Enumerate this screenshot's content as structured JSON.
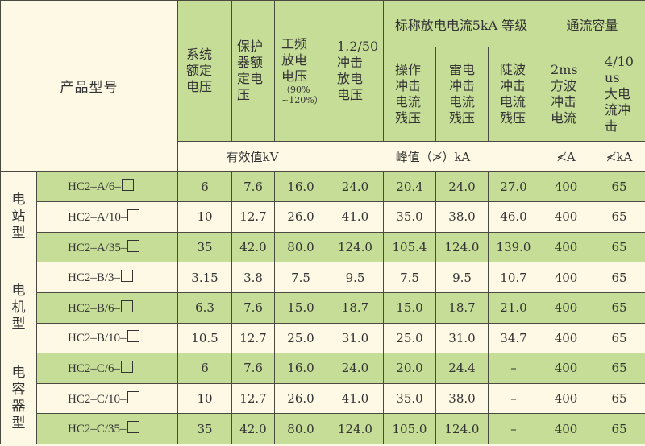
{
  "header": {
    "product_model": "产品型号",
    "rated_system_voltage": "系统额定电压",
    "rated_protector_voltage": "保护器额定电压",
    "power_freq_discharge": "工频放电电压",
    "power_freq_range": "（90% ~120%）",
    "impulse_discharge": [
      "1.2/50",
      "冲击放电电压"
    ],
    "nominal_group": "标称放电电流5kA 等级",
    "switching_residual": "操作冲击电流残压",
    "lightning_residual": "雷电冲击电流残压",
    "steep_residual": "陡波冲击电流残压",
    "flow_capacity": "通流容量",
    "square_wave": [
      "2ms",
      "方波冲击电流"
    ],
    "high_current": [
      "4/10",
      "us大电流冲击"
    ]
  },
  "units": {
    "rms": "有效值kV",
    "peak": "峰值（≯）kA",
    "square_wave": "≮A",
    "high_current": "≮kA"
  },
  "groups": [
    {
      "name": "电站型",
      "rows": [
        {
          "model": "HC2–A/6–",
          "values": [
            "6",
            "7.6",
            "16.0",
            "24.0",
            "20.4",
            "24.0",
            "27.0",
            "400",
            "65"
          ]
        },
        {
          "model": "HC2–A/10–",
          "values": [
            "10",
            "12.7",
            "26.0",
            "41.0",
            "35.0",
            "38.0",
            "46.0",
            "400",
            "65"
          ]
        },
        {
          "model": "HC2–A/35–",
          "values": [
            "35",
            "42.0",
            "80.0",
            "124.0",
            "105.4",
            "124.0",
            "139.0",
            "400",
            "65"
          ]
        }
      ]
    },
    {
      "name": "电机型",
      "rows": [
        {
          "model": "HC2–B/3–",
          "values": [
            "3.15",
            "3.8",
            "7.5",
            "9.5",
            "7.5",
            "9.5",
            "10.7",
            "400",
            "65"
          ]
        },
        {
          "model": "HC2–B/6–",
          "values": [
            "6.3",
            "7.6",
            "15.0",
            "18.7",
            "15.0",
            "18.7",
            "21.0",
            "400",
            "65"
          ]
        },
        {
          "model": "HC2–B/10–",
          "values": [
            "10.5",
            "12.7",
            "25.0",
            "31.0",
            "25.0",
            "31.0",
            "34.7",
            "400",
            "65"
          ]
        }
      ]
    },
    {
      "name": "电容器型",
      "rows": [
        {
          "model": "HC2–C/6–",
          "values": [
            "6",
            "7.6",
            "16.0",
            "24.0",
            "20.0",
            "24.4",
            "–",
            "400",
            "65"
          ]
        },
        {
          "model": "HC2–C/10–",
          "values": [
            "10",
            "12.7",
            "26.0",
            "41.0",
            "35.0",
            "38.0",
            "–",
            "400",
            "65"
          ]
        },
        {
          "model": "HC2–C/35–",
          "values": [
            "35",
            "42.0",
            "80.0",
            "124.0",
            "105.0",
            "124.0",
            "–",
            "400",
            "65"
          ]
        }
      ]
    }
  ],
  "colors": {
    "green": "#c6dd98",
    "cream": "#fdf9e4",
    "border": "#4a4a40"
  }
}
